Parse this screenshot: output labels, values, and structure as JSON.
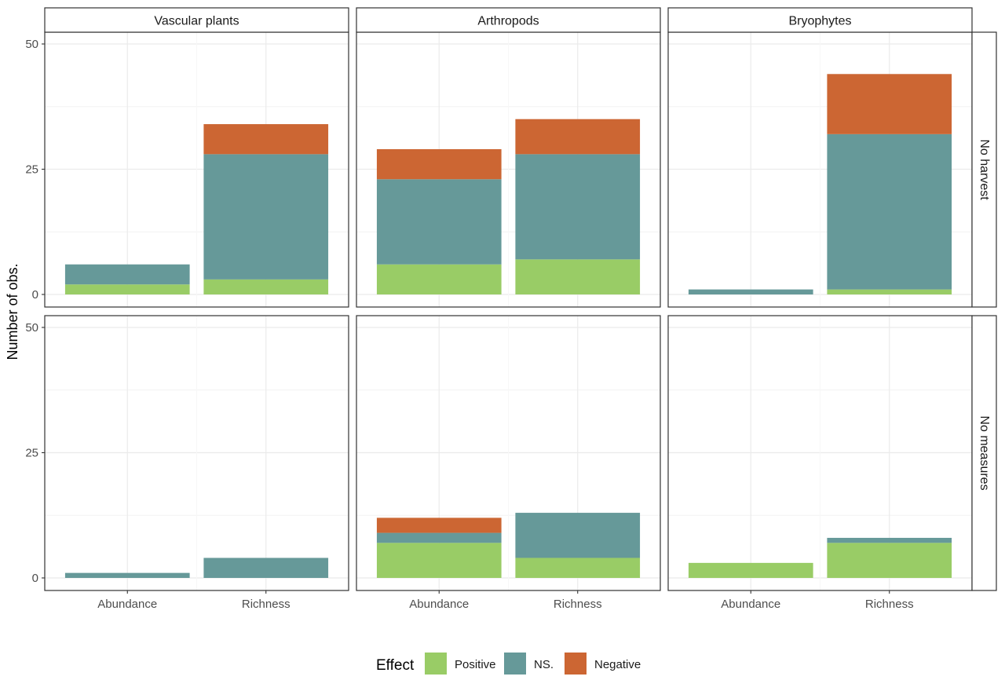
{
  "chart_data": {
    "type": "bar",
    "stacked": true,
    "facet_columns": [
      "Vascular plants",
      "Arthropods",
      "Bryophytes"
    ],
    "facet_rows": [
      "No harvest",
      "No measures"
    ],
    "categories": [
      "Abundance",
      "Richness"
    ],
    "ylabel": "Number of obs.",
    "xlabel": "",
    "ylim": [
      0,
      52
    ],
    "yticks": [
      0,
      25,
      50
    ],
    "grid": true,
    "legend": {
      "title": "Effect",
      "position": "bottom",
      "entries": [
        {
          "name": "Positive",
          "color": "#99cc66"
        },
        {
          "name": "NS.",
          "color": "#669999"
        },
        {
          "name": "Negative",
          "color": "#cc6633"
        }
      ]
    },
    "panels": [
      {
        "row": "No harvest",
        "column": "Vascular plants",
        "series": [
          {
            "name": "Positive",
            "values": [
              2,
              3
            ]
          },
          {
            "name": "NS.",
            "values": [
              4,
              25
            ]
          },
          {
            "name": "Negative",
            "values": [
              0,
              6
            ]
          }
        ]
      },
      {
        "row": "No harvest",
        "column": "Arthropods",
        "series": [
          {
            "name": "Positive",
            "values": [
              6,
              7
            ]
          },
          {
            "name": "NS.",
            "values": [
              17,
              21
            ]
          },
          {
            "name": "Negative",
            "values": [
              6,
              7
            ]
          }
        ]
      },
      {
        "row": "No harvest",
        "column": "Bryophytes",
        "series": [
          {
            "name": "Positive",
            "values": [
              0,
              1
            ]
          },
          {
            "name": "NS.",
            "values": [
              1,
              31
            ]
          },
          {
            "name": "Negative",
            "values": [
              0,
              12
            ]
          }
        ]
      },
      {
        "row": "No measures",
        "column": "Vascular plants",
        "series": [
          {
            "name": "Positive",
            "values": [
              0,
              0
            ]
          },
          {
            "name": "NS.",
            "values": [
              1,
              4
            ]
          },
          {
            "name": "Negative",
            "values": [
              0,
              0
            ]
          }
        ]
      },
      {
        "row": "No measures",
        "column": "Arthropods",
        "series": [
          {
            "name": "Positive",
            "values": [
              7,
              4
            ]
          },
          {
            "name": "NS.",
            "values": [
              2,
              9
            ]
          },
          {
            "name": "Negative",
            "values": [
              3,
              0
            ]
          }
        ]
      },
      {
        "row": "No measures",
        "column": "Bryophytes",
        "series": [
          {
            "name": "Positive",
            "values": [
              3,
              7
            ]
          },
          {
            "name": "NS.",
            "values": [
              0,
              1
            ]
          },
          {
            "name": "Negative",
            "values": [
              0,
              0
            ]
          }
        ]
      }
    ]
  }
}
